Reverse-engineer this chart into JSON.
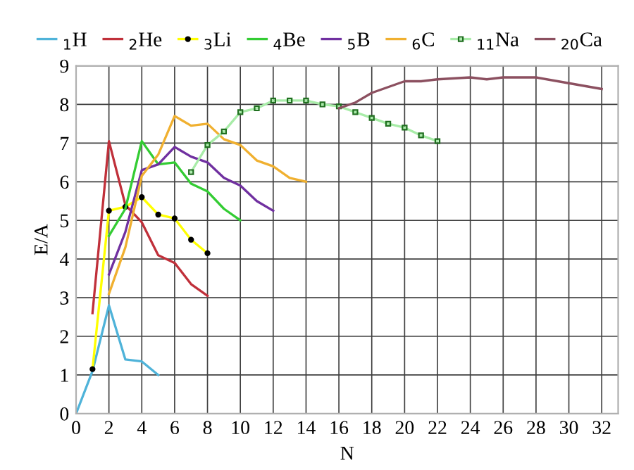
{
  "chart_data": {
    "type": "line",
    "xlabel": "N",
    "ylabel": "E/A",
    "xlim": [
      0,
      33
    ],
    "ylim": [
      0,
      9
    ],
    "xticks": [
      0,
      2,
      4,
      6,
      8,
      10,
      12,
      14,
      16,
      18,
      20,
      22,
      24,
      26,
      28,
      30,
      32
    ],
    "yticks": [
      0,
      1,
      2,
      3,
      4,
      5,
      6,
      7,
      8,
      9
    ],
    "grid": true,
    "legend": "top",
    "marker": "none",
    "line_style": "solid",
    "series": [
      {
        "name": "$_{1}$H",
        "color": "#4fb3d9",
        "x": [
          0,
          1,
          2,
          3,
          4,
          5
        ],
        "values": [
          0,
          1.1,
          2.8,
          1.4,
          1.35,
          1.0
        ]
      },
      {
        "name": "$_{2}$He",
        "color": "#c0303a",
        "x": [
          1,
          2,
          3,
          4,
          5,
          6,
          7,
          8
        ],
        "values": [
          2.6,
          7.05,
          5.4,
          4.95,
          4.1,
          3.9,
          3.35,
          3.05
        ]
      },
      {
        "name": "$_{3}$Li",
        "color": "#ffff00",
        "marker": "circle",
        "x": [
          1,
          2,
          3,
          4,
          5,
          6,
          7,
          8
        ],
        "values": [
          1.15,
          5.25,
          5.35,
          5.6,
          5.15,
          5.05,
          4.5,
          4.15
        ]
      },
      {
        "name": "$_{4}$Be",
        "color": "#33cc33",
        "x": [
          2,
          3,
          4,
          5,
          6,
          7,
          8,
          9,
          10
        ],
        "values": [
          4.6,
          5.3,
          7.05,
          6.45,
          6.5,
          5.95,
          5.75,
          5.3,
          5.0
        ]
      },
      {
        "name": "$_{5}$B",
        "color": "#7030a0",
        "x": [
          2,
          3,
          4,
          5,
          6,
          7,
          8,
          9,
          10,
          11,
          12
        ],
        "values": [
          3.6,
          4.7,
          6.3,
          6.45,
          6.9,
          6.65,
          6.5,
          6.1,
          5.9,
          5.5,
          5.25
        ]
      },
      {
        "name": "$_{6}$C",
        "color": "#f0b030",
        "x": [
          2,
          3,
          4,
          5,
          6,
          7,
          8,
          9,
          10,
          11,
          12,
          13,
          14
        ],
        "values": [
          3.1,
          4.3,
          6.15,
          6.7,
          7.7,
          7.45,
          7.5,
          7.1,
          6.95,
          6.55,
          6.4,
          6.1,
          6.0
        ]
      },
      {
        "name": "$_{11}$Na",
        "color": "#a8eca8",
        "marker": "square",
        "x": [
          7,
          8,
          9,
          10,
          11,
          12,
          13,
          14,
          15,
          16,
          17,
          18,
          19,
          20,
          21,
          22
        ],
        "values": [
          6.25,
          6.95,
          7.3,
          7.8,
          7.9,
          8.1,
          8.1,
          8.1,
          8.0,
          7.95,
          7.8,
          7.65,
          7.5,
          7.4,
          7.2,
          7.05
        ]
      },
      {
        "name": "$_{20}$Ca",
        "color": "#8c5060",
        "x": [
          16,
          17,
          18,
          19,
          20,
          21,
          22,
          24,
          25,
          26,
          28,
          30,
          32
        ],
        "values": [
          7.9,
          8.05,
          8.3,
          8.45,
          8.6,
          8.6,
          8.65,
          8.7,
          8.65,
          8.7,
          8.7,
          8.55,
          8.4
        ]
      }
    ]
  }
}
